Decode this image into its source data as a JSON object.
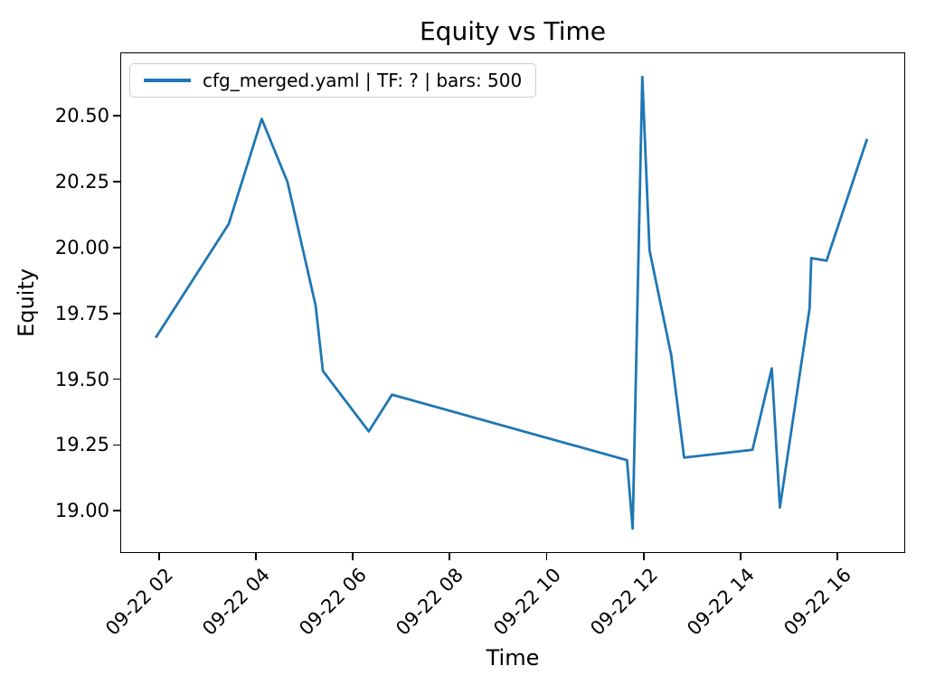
{
  "figure": {
    "title": "Equity vs Time",
    "xlabel": "Time",
    "ylabel": "Equity",
    "legend": {
      "label": "cfg_merged.yaml | TF: ? | bars: 500"
    }
  },
  "chart_data": {
    "type": "line",
    "title": "Equity vs Time",
    "xlabel": "Time",
    "ylabel": "Equity",
    "grid": false,
    "legend_position": "upper left",
    "line_color": "#1f77b4",
    "x_axis": {
      "unit": "time of day on 09-22 (hours)",
      "lim": [
        1.2,
        17.4
      ],
      "ticks": [
        {
          "t": 2,
          "label": "09-22 02"
        },
        {
          "t": 4,
          "label": "09-22 04"
        },
        {
          "t": 6,
          "label": "09-22 06"
        },
        {
          "t": 8,
          "label": "09-22 08"
        },
        {
          "t": 10,
          "label": "09-22 10"
        },
        {
          "t": 12,
          "label": "09-22 12"
        },
        {
          "t": 14,
          "label": "09-22 14"
        },
        {
          "t": 16,
          "label": "09-22 16"
        }
      ]
    },
    "y_axis": {
      "lim": [
        18.84,
        20.74
      ],
      "ticks": [
        19.0,
        19.25,
        19.5,
        19.75,
        20.0,
        20.25,
        20.5
      ]
    },
    "series": [
      {
        "name": "cfg_merged.yaml | TF: ? | bars: 500",
        "points": [
          [
            "09-22 01:55",
            19.66
          ],
          [
            "09-22 03:25",
            20.09
          ],
          [
            "09-22 04:06",
            20.49
          ],
          [
            "09-22 04:38",
            20.25
          ],
          [
            "09-22 05:13",
            19.78
          ],
          [
            "09-22 05:22",
            19.53
          ],
          [
            "09-22 06:19",
            19.3
          ],
          [
            "09-22 06:48",
            19.44
          ],
          [
            "09-22 11:40",
            19.19
          ],
          [
            "09-22 11:47",
            18.93
          ],
          [
            "09-22 11:59",
            20.65
          ],
          [
            "09-22 12:08",
            19.99
          ],
          [
            "09-22 12:35",
            19.59
          ],
          [
            "09-22 12:51",
            19.2
          ],
          [
            "09-22 14:16",
            19.23
          ],
          [
            "09-22 14:40",
            19.54
          ],
          [
            "09-22 14:50",
            19.01
          ],
          [
            "09-22 15:27",
            19.77
          ],
          [
            "09-22 15:29",
            19.96
          ],
          [
            "09-22 15:48",
            19.95
          ],
          [
            "09-22 16:38",
            20.41
          ]
        ]
      }
    ]
  }
}
